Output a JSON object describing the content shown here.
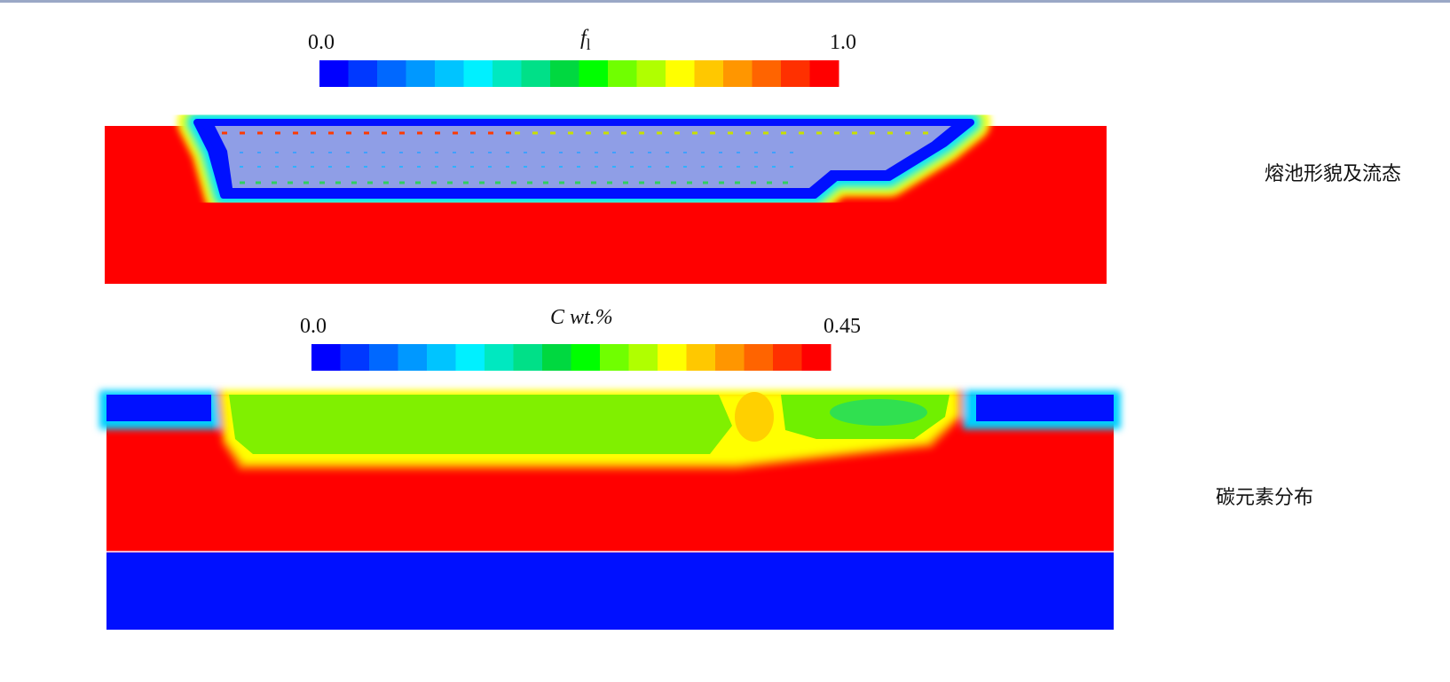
{
  "panels": [
    {
      "colorbar": {
        "min_label": "0.0",
        "max_label": "1.0",
        "symbol": "f",
        "subscript": "l"
      },
      "caption": "熔池形貌及流态"
    },
    {
      "colorbar": {
        "min_label": "0.0",
        "max_label": "0.45",
        "symbol": "C wt.%"
      },
      "caption": "碳元素分布"
    }
  ]
}
